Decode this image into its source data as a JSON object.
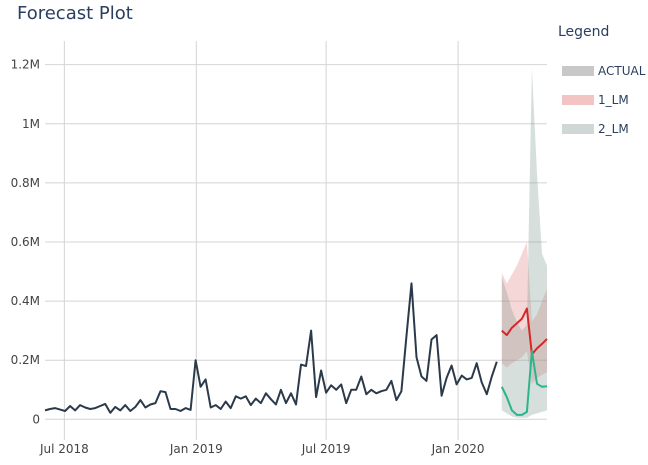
{
  "chart_data": {
    "type": "line",
    "title": "Forecast Plot",
    "legend_title": "Legend",
    "legend_position": "right",
    "grid": true,
    "ylim": [
      -70000,
      1280000
    ],
    "xlim": [
      "2018-06-04",
      "2020-05-04"
    ],
    "x_ticks": [
      {
        "date": "2018-07-01",
        "label": "Jul 2018"
      },
      {
        "date": "2019-01-01",
        "label": "Jan 2019"
      },
      {
        "date": "2019-07-01",
        "label": "Jul 2019"
      },
      {
        "date": "2020-01-01",
        "label": "Jan 2020"
      }
    ],
    "y_ticks": [
      {
        "value": 0,
        "label": "0"
      },
      {
        "value": 200000,
        "label": "0.2M"
      },
      {
        "value": 400000,
        "label": "0.4M"
      },
      {
        "value": 600000,
        "label": "0.6M"
      },
      {
        "value": 800000,
        "label": "0.8M"
      },
      {
        "value": 1000000,
        "label": "1M"
      },
      {
        "value": 1200000,
        "label": "1.2M"
      }
    ],
    "legend": [
      {
        "label": "ACTUAL",
        "color": "#2b3a4a",
        "swatch": "#c8c8c8"
      },
      {
        "label": "1_LM",
        "color": "#d62728",
        "swatch": "#f2c4c4"
      },
      {
        "label": "2_LM",
        "color": "#2ab58c",
        "swatch": "#cfd8d6"
      }
    ],
    "series": [
      {
        "name": "ACTUAL",
        "color": "#2b3a4a",
        "x": [
          "2018-06-04",
          "2018-06-11",
          "2018-06-18",
          "2018-06-25",
          "2018-07-02",
          "2018-07-09",
          "2018-07-16",
          "2018-07-23",
          "2018-07-30",
          "2018-08-06",
          "2018-08-13",
          "2018-08-20",
          "2018-08-27",
          "2018-09-03",
          "2018-09-10",
          "2018-09-17",
          "2018-09-24",
          "2018-10-01",
          "2018-10-08",
          "2018-10-15",
          "2018-10-22",
          "2018-10-29",
          "2018-11-05",
          "2018-11-12",
          "2018-11-19",
          "2018-11-26",
          "2018-12-03",
          "2018-12-10",
          "2018-12-17",
          "2018-12-24",
          "2018-12-31",
          "2019-01-07",
          "2019-01-14",
          "2019-01-21",
          "2019-01-28",
          "2019-02-04",
          "2019-02-11",
          "2019-02-18",
          "2019-02-25",
          "2019-03-04",
          "2019-03-11",
          "2019-03-18",
          "2019-03-25",
          "2019-04-01",
          "2019-04-08",
          "2019-04-15",
          "2019-04-22",
          "2019-04-29",
          "2019-05-06",
          "2019-05-13",
          "2019-05-20",
          "2019-05-27",
          "2019-06-03",
          "2019-06-10",
          "2019-06-17",
          "2019-06-24",
          "2019-07-01",
          "2019-07-08",
          "2019-07-15",
          "2019-07-22",
          "2019-07-29",
          "2019-08-05",
          "2019-08-12",
          "2019-08-19",
          "2019-08-26",
          "2019-09-02",
          "2019-09-09",
          "2019-09-16",
          "2019-09-23",
          "2019-09-30",
          "2019-10-07",
          "2019-10-14",
          "2019-10-21",
          "2019-10-28",
          "2019-11-04",
          "2019-11-11",
          "2019-11-18",
          "2019-11-25",
          "2019-12-02",
          "2019-12-09",
          "2019-12-16",
          "2019-12-23",
          "2019-12-30",
          "2020-01-06",
          "2020-01-13",
          "2020-01-20",
          "2020-01-27",
          "2020-02-03",
          "2020-02-10",
          "2020-02-17",
          "2020-02-24"
        ],
        "values": [
          30000,
          35000,
          38000,
          33000,
          28000,
          45000,
          30000,
          48000,
          40000,
          35000,
          38000,
          45000,
          52000,
          22000,
          42000,
          30000,
          48000,
          28000,
          42000,
          65000,
          40000,
          50000,
          55000,
          95000,
          92000,
          35000,
          35000,
          28000,
          38000,
          32000,
          200000,
          110000,
          135000,
          40000,
          48000,
          35000,
          60000,
          38000,
          78000,
          70000,
          78000,
          48000,
          70000,
          55000,
          88000,
          68000,
          50000,
          100000,
          55000,
          88000,
          50000,
          185000,
          180000,
          300000,
          75000,
          165000,
          90000,
          115000,
          100000,
          118000,
          55000,
          100000,
          100000,
          145000,
          85000,
          100000,
          88000,
          95000,
          100000,
          130000,
          65000,
          95000,
          280000,
          460000,
          210000,
          145000,
          130000,
          270000,
          285000,
          80000,
          140000,
          182000,
          118000,
          148000,
          135000,
          140000,
          190000,
          125000,
          85000,
          145000,
          195000
        ]
      },
      {
        "name": "1_LM",
        "color": "#d62728",
        "band_color": "rgba(230,140,140,0.35)",
        "x": [
          "2020-03-02",
          "2020-03-09",
          "2020-03-16",
          "2020-03-23",
          "2020-03-30",
          "2020-04-06",
          "2020-04-13",
          "2020-04-20",
          "2020-04-27",
          "2020-05-04"
        ],
        "values": [
          300000,
          285000,
          310000,
          325000,
          340000,
          375000,
          220000,
          240000,
          255000,
          272000
        ],
        "upper": [
          495000,
          460000,
          490000,
          520000,
          560000,
          600000,
          330000,
          355000,
          400000,
          440000
        ],
        "lower": [
          190000,
          175000,
          190000,
          200000,
          210000,
          230000,
          120000,
          140000,
          150000,
          160000
        ]
      },
      {
        "name": "2_LM",
        "color": "#2ab58c",
        "band_color": "rgba(120,150,140,0.30)",
        "x": [
          "2020-03-02",
          "2020-03-09",
          "2020-03-16",
          "2020-03-23",
          "2020-03-30",
          "2020-04-06",
          "2020-04-13",
          "2020-04-20",
          "2020-04-27",
          "2020-05-04"
        ],
        "values": [
          110000,
          75000,
          30000,
          15000,
          15000,
          25000,
          230000,
          120000,
          110000,
          112000
        ],
        "upper": [
          480000,
          430000,
          370000,
          330000,
          300000,
          320000,
          1190000,
          830000,
          560000,
          520000
        ],
        "lower": [
          30000,
          20000,
          10000,
          5000,
          5000,
          5000,
          15000,
          20000,
          25000,
          30000
        ]
      }
    ]
  }
}
